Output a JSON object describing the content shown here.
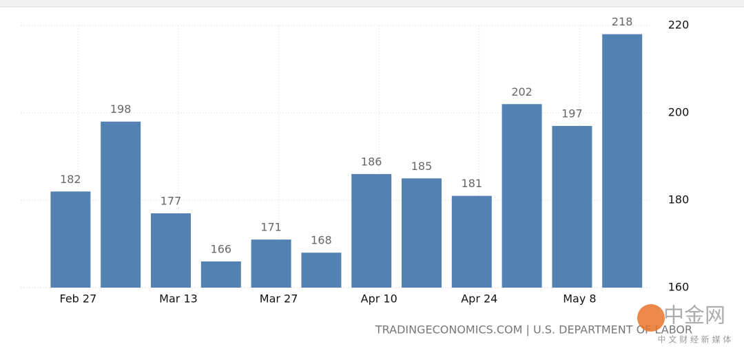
{
  "chart_data": {
    "type": "bar",
    "categories": [
      "Feb 27",
      null,
      "Mar 13",
      null,
      "Mar 27",
      null,
      "Apr 10",
      null,
      "Apr 24",
      null,
      "May 8",
      null
    ],
    "values": [
      182,
      198,
      177,
      166,
      171,
      168,
      186,
      185,
      181,
      202,
      197,
      218
    ],
    "color": "#5381b2",
    "ylim": [
      160,
      220
    ],
    "yticks": [
      160,
      180,
      200,
      220
    ],
    "grid": true,
    "source": "TRADINGECONOMICS.COM | U.S. DEPARTMENT OF LABOR",
    "watermark": {
      "name": "中金网",
      "tagline": "中 文 财 经 新 媒 体"
    }
  }
}
